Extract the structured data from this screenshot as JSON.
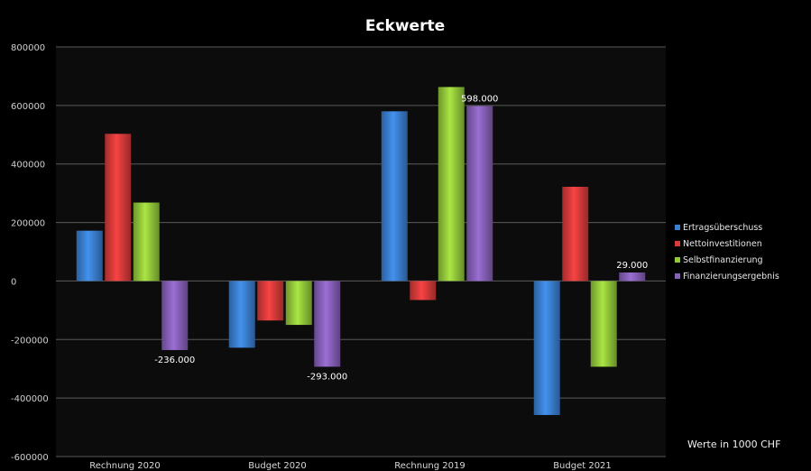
{
  "chart_data": {
    "type": "bar",
    "title": "Eckwerte",
    "note": "Werte in 1000 CHF",
    "categories": [
      "Rechnung 2020",
      "Budget 2020",
      "Rechnung 2019",
      "Budget 2021"
    ],
    "ylim": [
      -600000,
      800000
    ],
    "yticks": [
      -600000,
      -400000,
      -200000,
      0,
      200000,
      400000,
      600000,
      800000
    ],
    "ytick_labels": [
      "-600000",
      "-400000",
      "-200000",
      "0",
      "200000",
      "400000",
      "600000",
      "800000"
    ],
    "grid": true,
    "legend_position": "right",
    "series": [
      {
        "name": "Ertragsüberschuss",
        "color": "#3a7fd0",
        "values": [
          172000,
          -228000,
          580000,
          -458000
        ]
      },
      {
        "name": "Nettoinvestitionen",
        "color": "#d83a3a",
        "values": [
          503000,
          -135000,
          -65000,
          322000
        ]
      },
      {
        "name": "Selbstfinanzierung",
        "color": "#93c83a",
        "values": [
          268000,
          -150000,
          663000,
          -293000
        ]
      },
      {
        "name": "Finanzierungsergebnis",
        "color": "#8760b8",
        "values": [
          -236000,
          -293000,
          598000,
          29000
        ]
      }
    ],
    "data_labels": [
      {
        "series": 3,
        "category": 0,
        "text": "-236.000"
      },
      {
        "series": 3,
        "category": 1,
        "text": "-293.000"
      },
      {
        "series": 3,
        "category": 2,
        "text": "598.000"
      },
      {
        "series": 3,
        "category": 3,
        "text": "29.000"
      }
    ]
  }
}
